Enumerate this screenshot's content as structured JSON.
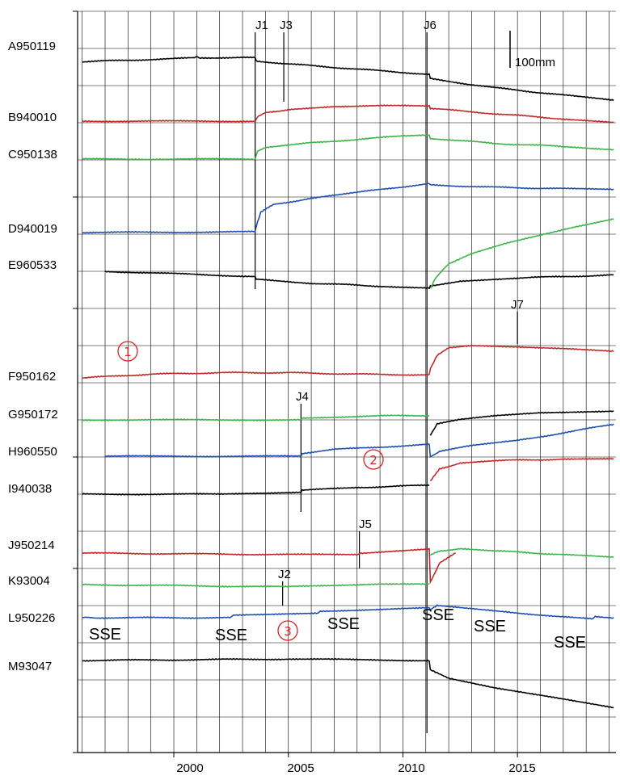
{
  "chart_data": {
    "type": "line",
    "title": "",
    "xlabel": "",
    "ylabel": "",
    "xlim": [
      1995.8,
      2019.3
    ],
    "x_ticks": [
      "2000",
      "2005",
      "2010",
      "2015"
    ],
    "x_tick_values": [
      2000,
      2005,
      2010,
      2015
    ],
    "minor_year_gridlines": true,
    "grid": true,
    "scale_bar": {
      "label": "100mm",
      "length_mm": 100
    },
    "colors": {
      "black": "#000000",
      "red": "#c0282a",
      "green": "#3cb44a",
      "blue": "#1f4fae",
      "marker": "#e02020"
    },
    "stations": [
      {
        "label": "A950119",
        "color": "black",
        "points": [
          [
            1996,
            -40
          ],
          [
            1999,
            -34
          ],
          [
            2000.9,
            -30
          ],
          [
            2001,
            -26
          ],
          [
            2001.1,
            -30
          ],
          [
            2003,
            -28
          ],
          [
            2003.55,
            -30
          ],
          [
            2003.6,
            -38
          ],
          [
            2005,
            -46
          ],
          [
            2008,
            -60
          ],
          [
            2011.15,
            -74
          ],
          [
            2011.2,
            -86
          ],
          [
            2014,
            -110
          ],
          [
            2017,
            -130
          ],
          [
            2019.2,
            -144
          ]
        ]
      },
      {
        "label": "B940010",
        "color": "red",
        "points": [
          [
            1996,
            0
          ],
          [
            2003.55,
            0
          ],
          [
            2003.65,
            12
          ],
          [
            2004,
            24
          ],
          [
            2004.8,
            28
          ],
          [
            2005,
            32
          ],
          [
            2007,
            40
          ],
          [
            2011.15,
            42
          ],
          [
            2011.2,
            34
          ],
          [
            2014,
            20
          ],
          [
            2017,
            6
          ],
          [
            2019.2,
            -4
          ]
        ]
      },
      {
        "label": "C950138",
        "color": "green",
        "points": [
          [
            1996,
            0
          ],
          [
            2003.55,
            0
          ],
          [
            2003.65,
            20
          ],
          [
            2004,
            30
          ],
          [
            2006,
            44
          ],
          [
            2010,
            62
          ],
          [
            2011.15,
            64
          ],
          [
            2011.2,
            56
          ],
          [
            2014,
            42
          ],
          [
            2017,
            34
          ],
          [
            2019.2,
            26
          ]
        ]
      },
      {
        "label": "D940019",
        "color": "blue",
        "points": [
          [
            1996,
            0
          ],
          [
            2003.55,
            2
          ],
          [
            2003.65,
            28
          ],
          [
            2003.8,
            56
          ],
          [
            2004.4,
            76
          ],
          [
            2006,
            92
          ],
          [
            2008,
            108
          ],
          [
            2011.15,
            132
          ],
          [
            2011.2,
            128
          ],
          [
            2014,
            122
          ],
          [
            2017,
            118
          ],
          [
            2019.2,
            116
          ]
        ]
      },
      {
        "label": "E960533",
        "color": "black",
        "points": [
          [
            1997,
            0
          ],
          [
            2003.55,
            -14
          ],
          [
            2003.6,
            -22
          ],
          [
            2006,
            -32
          ],
          [
            2009,
            -40
          ],
          [
            2011.15,
            -44
          ],
          [
            2011.2,
            -40
          ],
          [
            2012.5,
            -26
          ],
          [
            2015,
            -18
          ],
          [
            2019.2,
            -10
          ]
        ]
      },
      {
        "label": "E960533",
        "color": "green",
        "points": [
          [
            2011.2,
            -46
          ],
          [
            2011.4,
            -20
          ],
          [
            2012,
            20
          ],
          [
            2013,
            48
          ],
          [
            2014.5,
            76
          ],
          [
            2016,
            98
          ],
          [
            2017.5,
            120
          ],
          [
            2019.2,
            142
          ]
        ]
      },
      {
        "label": "F950162",
        "color": "red",
        "points": [
          [
            1996,
            0
          ],
          [
            1999,
            10
          ],
          [
            2002,
            14
          ],
          [
            2005,
            14
          ],
          [
            2008,
            10
          ],
          [
            2011.15,
            8
          ],
          [
            2011.2,
            24
          ],
          [
            2011.5,
            60
          ],
          [
            2012,
            80
          ],
          [
            2013,
            86
          ],
          [
            2015,
            82
          ],
          [
            2017,
            78
          ],
          [
            2019.2,
            72
          ]
        ]
      },
      {
        "label": "G950172",
        "color": "green",
        "points": [
          [
            1996,
            0
          ],
          [
            2005.55,
            0
          ],
          [
            2005.6,
            4
          ],
          [
            2008,
            10
          ],
          [
            2011.15,
            12
          ]
        ]
      },
      {
        "label": "G950172",
        "color": "black",
        "points": [
          [
            2011.2,
            -40
          ],
          [
            2011.5,
            -10
          ],
          [
            2012.5,
            2
          ],
          [
            2014,
            12
          ],
          [
            2016,
            20
          ],
          [
            2019.2,
            24
          ]
        ]
      },
      {
        "label": "H960550",
        "color": "blue",
        "points": [
          [
            1997,
            0
          ],
          [
            2005.55,
            0
          ],
          [
            2005.6,
            8
          ],
          [
            2007,
            18
          ],
          [
            2011.15,
            32
          ],
          [
            2011.2,
            -2
          ],
          [
            2011.6,
            14
          ],
          [
            2013,
            28
          ],
          [
            2015,
            42
          ],
          [
            2019.2,
            86
          ]
        ]
      },
      {
        "label": "H960550",
        "color": "red",
        "points": [
          [
            2011.2,
            -68
          ],
          [
            2011.6,
            -34
          ],
          [
            2012.5,
            -18
          ],
          [
            2014,
            -12
          ],
          [
            2017,
            -8
          ],
          [
            2019.2,
            -8
          ]
        ]
      },
      {
        "label": "I940038",
        "color": "black",
        "points": [
          [
            1996,
            0
          ],
          [
            2002,
            0
          ],
          [
            2005.55,
            6
          ],
          [
            2005.6,
            10
          ],
          [
            2008,
            18
          ],
          [
            2011.15,
            24
          ]
        ]
      },
      {
        "label": "J950214",
        "color": "red",
        "points": [
          [
            1996,
            0
          ],
          [
            2005,
            -4
          ],
          [
            2008.05,
            -4
          ],
          [
            2008.1,
            0
          ],
          [
            2011.15,
            10
          ],
          [
            2011.2,
            -78
          ],
          [
            2011.6,
            -26
          ],
          [
            2012.3,
            0
          ]
        ]
      },
      {
        "label": "J950214",
        "color": "green",
        "points": [
          [
            2011.2,
            -6
          ],
          [
            2011.6,
            6
          ],
          [
            2012.5,
            12
          ],
          [
            2014,
            6
          ],
          [
            2017,
            -4
          ],
          [
            2019.2,
            -12
          ]
        ]
      },
      {
        "label": "K93004",
        "color": "green",
        "points": [
          [
            1996,
            0
          ],
          [
            2004.8,
            -6
          ],
          [
            2007,
            -2
          ],
          [
            2009,
            2
          ],
          [
            2011.15,
            2
          ]
        ]
      },
      {
        "label": "L950226",
        "color": "blue",
        "points": [
          [
            1996,
            0
          ],
          [
            1996.6,
            0
          ],
          [
            2002.5,
            0
          ],
          [
            2002.6,
            8
          ],
          [
            2006.3,
            12
          ],
          [
            2006.4,
            18
          ],
          [
            2011.15,
            26
          ],
          [
            2011.2,
            22
          ],
          [
            2011.5,
            32
          ],
          [
            2014,
            18
          ],
          [
            2018.3,
            -4
          ],
          [
            2018.4,
            4
          ],
          [
            2019.2,
            0
          ]
        ]
      },
      {
        "label": "M93047",
        "color": "black",
        "points": [
          [
            1996,
            0
          ],
          [
            2005,
            4
          ],
          [
            2011.15,
            0
          ],
          [
            2011.2,
            -26
          ],
          [
            2012,
            -48
          ],
          [
            2014,
            -74
          ],
          [
            2016,
            -94
          ],
          [
            2019.2,
            -128
          ]
        ]
      }
    ],
    "events": [
      {
        "label": "J1",
        "x": 2003.55
      },
      {
        "label": "J3",
        "x": 2004.8
      },
      {
        "label": "J6",
        "x": 2011.05
      },
      {
        "label": "J4",
        "x": 2005.55
      },
      {
        "label": "J5",
        "x": 2008.1
      },
      {
        "label": "J2",
        "x": 2004.75
      },
      {
        "label": "J7",
        "x": 2015
      }
    ],
    "sse_labels": [
      "SSE",
      "SSE",
      "SSE",
      "SSE",
      "SSE",
      "SSE"
    ],
    "circled_markers": [
      "①",
      "②",
      "③"
    ]
  }
}
